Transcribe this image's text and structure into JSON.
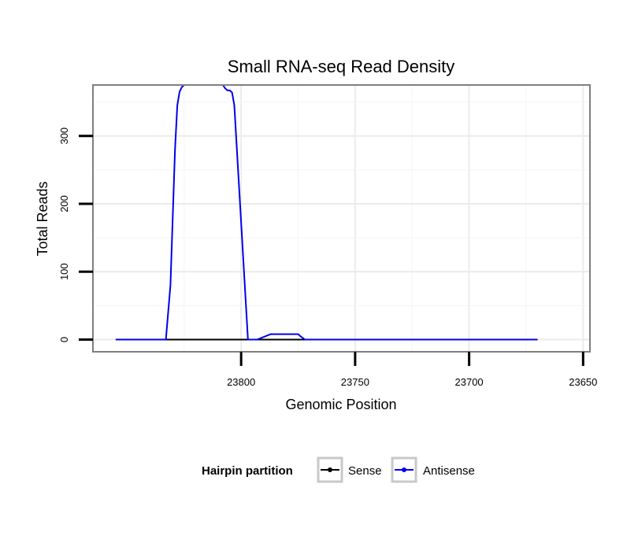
{
  "chart_data": {
    "type": "line",
    "title": "Small RNA-seq Read Density",
    "xlabel": "Genomic Position",
    "ylabel": "Total Reads",
    "xlim": [
      23865,
      23647
    ],
    "x_reversed": true,
    "ylim": [
      -18,
      375
    ],
    "xticks": [
      23800,
      23750,
      23700,
      23650
    ],
    "xtick_labels": [
      "23800",
      "23750",
      "23700",
      "23650"
    ],
    "yticks": [
      0,
      100,
      200,
      300
    ],
    "ytick_labels": [
      "0",
      "100",
      "200",
      "300"
    ],
    "grid": true,
    "legend_position": "bottom",
    "legend": {
      "title": "Hairpin partition",
      "entries": [
        "Sense",
        "Antisense"
      ]
    },
    "series": [
      {
        "name": "Sense",
        "color": "#000000",
        "x": [
          23855,
          23670
        ],
        "y": [
          0,
          0
        ]
      },
      {
        "name": "Antisense",
        "color": "#0000ee",
        "x": [
          23855,
          23833,
          23831,
          23829,
          23828,
          23827,
          23826,
          23825,
          23819,
          23814,
          23811,
          23808,
          23807,
          23806,
          23805,
          23804,
          23803,
          23797,
          23795,
          23793,
          23787,
          23776,
          23775,
          23774,
          23772,
          23670
        ],
        "y": [
          0,
          0,
          80,
          280,
          345,
          365,
          372,
          375,
          375,
          375,
          375,
          375,
          370,
          367,
          367,
          364,
          345,
          0,
          0,
          0,
          8,
          8,
          8,
          5,
          0,
          0
        ]
      }
    ]
  }
}
